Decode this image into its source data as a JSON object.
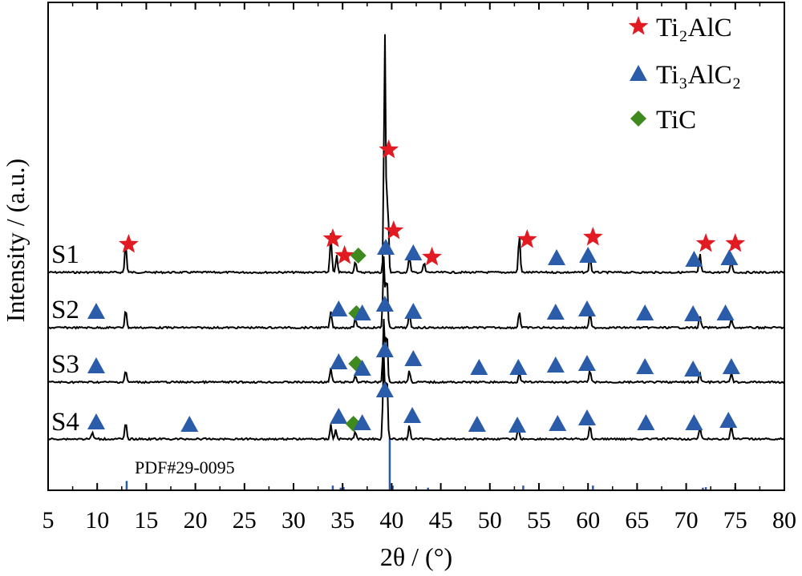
{
  "chart_data": {
    "type": "line",
    "xlabel": "2θ / (°)",
    "ylabel": "Intensity / (a.u.)",
    "xlim": [
      5,
      80
    ],
    "x_ticks": [
      "5",
      "10",
      "15",
      "20",
      "25",
      "30",
      "35",
      "40",
      "45",
      "50",
      "55",
      "60",
      "65",
      "70",
      "75",
      "80"
    ],
    "grid": false,
    "legend_position": "top-right",
    "legend": [
      {
        "marker": "star",
        "color": "#e21b23",
        "label": "Ti₂AlC"
      },
      {
        "marker": "triangle",
        "color": "#2a5caa",
        "label": "Ti₃AlC₂"
      },
      {
        "marker": "diamond",
        "color": "#3f8a1f",
        "label": "TiC"
      }
    ],
    "colors": {
      "ti2alc": "#e21b23",
      "ti3alc2": "#2a5caa",
      "tic": "#3f8a1f",
      "curve": "#000000",
      "reference": "#2a5caa"
    },
    "reference": {
      "label": "PDF#29-0095",
      "peaks": [
        {
          "x": 13.0,
          "rel": 0.18
        },
        {
          "x": 34.0,
          "rel": 0.09
        },
        {
          "x": 34.8,
          "rel": 0.05
        },
        {
          "x": 35.1,
          "rel": 0.06
        },
        {
          "x": 39.8,
          "rel": 1.0
        },
        {
          "x": 40.1,
          "rel": 0.09
        },
        {
          "x": 43.7,
          "rel": 0.05
        },
        {
          "x": 53.4,
          "rel": 0.09
        },
        {
          "x": 60.5,
          "rel": 0.09
        },
        {
          "x": 71.7,
          "rel": 0.05
        },
        {
          "x": 72.0,
          "rel": 0.06
        },
        {
          "x": 75.0,
          "rel": 0.06
        }
      ]
    },
    "series": [
      {
        "name": "S1",
        "peaks": [
          {
            "x": 12.9,
            "h": 0.12
          },
          {
            "x": 33.8,
            "h": 0.16
          },
          {
            "x": 34.4,
            "h": 0.07
          },
          {
            "x": 36.3,
            "h": 0.05
          },
          {
            "x": 39.3,
            "h": 1.0
          },
          {
            "x": 39.6,
            "h": 0.3
          },
          {
            "x": 41.8,
            "h": 0.07
          },
          {
            "x": 43.3,
            "h": 0.04
          },
          {
            "x": 53.0,
            "h": 0.16
          },
          {
            "x": 60.2,
            "h": 0.07
          },
          {
            "x": 71.4,
            "h": 0.08
          },
          {
            "x": 74.6,
            "h": 0.06
          }
        ],
        "markers": [
          {
            "type": "star",
            "x": 13.2
          },
          {
            "type": "star",
            "x": 34.0
          },
          {
            "type": "star",
            "x": 35.2
          },
          {
            "type": "diamond",
            "x": 36.6
          },
          {
            "type": "star",
            "x": 39.7
          },
          {
            "type": "triangle",
            "x": 39.4
          },
          {
            "type": "star",
            "x": 40.2
          },
          {
            "type": "triangle",
            "x": 42.2
          },
          {
            "type": "star",
            "x": 44.1
          },
          {
            "type": "star",
            "x": 53.8
          },
          {
            "type": "triangle",
            "x": 56.8
          },
          {
            "type": "triangle",
            "x": 60.0
          },
          {
            "type": "star",
            "x": 60.5
          },
          {
            "type": "triangle",
            "x": 70.8
          },
          {
            "type": "star",
            "x": 72.0
          },
          {
            "type": "triangle",
            "x": 74.4
          },
          {
            "type": "star",
            "x": 75.0
          }
        ]
      },
      {
        "name": "S2",
        "peaks": [
          {
            "x": 12.9,
            "h": 0.08
          },
          {
            "x": 33.8,
            "h": 0.07
          },
          {
            "x": 36.3,
            "h": 0.04
          },
          {
            "x": 39.2,
            "h": 0.3
          },
          {
            "x": 39.5,
            "h": 0.22
          },
          {
            "x": 41.8,
            "h": 0.06
          },
          {
            "x": 53.0,
            "h": 0.07
          },
          {
            "x": 60.2,
            "h": 0.06
          },
          {
            "x": 71.4,
            "h": 0.05
          },
          {
            "x": 74.6,
            "h": 0.04
          }
        ],
        "markers": [
          {
            "type": "triangle",
            "x": 9.9
          },
          {
            "type": "triangle",
            "x": 34.6
          },
          {
            "type": "diamond",
            "x": 36.4
          },
          {
            "type": "triangle",
            "x": 37.0
          },
          {
            "type": "triangle",
            "x": 39.3
          },
          {
            "type": "triangle",
            "x": 42.2
          },
          {
            "type": "triangle",
            "x": 56.7
          },
          {
            "type": "triangle",
            "x": 59.9
          },
          {
            "type": "triangle",
            "x": 65.8
          },
          {
            "type": "triangle",
            "x": 70.7
          },
          {
            "type": "triangle",
            "x": 74.0
          }
        ]
      },
      {
        "name": "S3",
        "peaks": [
          {
            "x": 12.9,
            "h": 0.05
          },
          {
            "x": 33.8,
            "h": 0.06
          },
          {
            "x": 36.3,
            "h": 0.03
          },
          {
            "x": 39.2,
            "h": 0.26
          },
          {
            "x": 39.5,
            "h": 0.22
          },
          {
            "x": 41.8,
            "h": 0.05
          },
          {
            "x": 53.0,
            "h": 0.04
          },
          {
            "x": 60.2,
            "h": 0.05
          },
          {
            "x": 71.4,
            "h": 0.04
          },
          {
            "x": 74.6,
            "h": 0.04
          }
        ],
        "markers": [
          {
            "type": "triangle",
            "x": 9.9
          },
          {
            "type": "triangle",
            "x": 34.6
          },
          {
            "type": "diamond",
            "x": 36.4
          },
          {
            "type": "triangle",
            "x": 37.0
          },
          {
            "type": "triangle",
            "x": 39.3
          },
          {
            "type": "triangle",
            "x": 42.2
          },
          {
            "type": "triangle",
            "x": 48.9
          },
          {
            "type": "triangle",
            "x": 52.9
          },
          {
            "type": "triangle",
            "x": 56.7
          },
          {
            "type": "triangle",
            "x": 59.9
          },
          {
            "type": "triangle",
            "x": 65.8
          },
          {
            "type": "triangle",
            "x": 70.7
          },
          {
            "type": "triangle",
            "x": 74.6
          }
        ]
      },
      {
        "name": "S4",
        "peaks": [
          {
            "x": 9.5,
            "h": 0.03
          },
          {
            "x": 12.9,
            "h": 0.07
          },
          {
            "x": 33.8,
            "h": 0.06
          },
          {
            "x": 34.3,
            "h": 0.04
          },
          {
            "x": 36.3,
            "h": 0.03
          },
          {
            "x": 39.2,
            "h": 0.36
          },
          {
            "x": 39.5,
            "h": 0.28
          },
          {
            "x": 41.8,
            "h": 0.06
          },
          {
            "x": 52.9,
            "h": 0.05
          },
          {
            "x": 60.2,
            "h": 0.06
          },
          {
            "x": 71.4,
            "h": 0.05
          },
          {
            "x": 74.6,
            "h": 0.06
          }
        ],
        "markers": [
          {
            "type": "triangle",
            "x": 9.9
          },
          {
            "type": "triangle",
            "x": 19.4
          },
          {
            "type": "triangle",
            "x": 34.6
          },
          {
            "type": "diamond",
            "x": 36.1
          },
          {
            "type": "triangle",
            "x": 37.0
          },
          {
            "type": "triangle",
            "x": 39.3
          },
          {
            "type": "triangle",
            "x": 42.1
          },
          {
            "type": "triangle",
            "x": 48.7
          },
          {
            "type": "triangle",
            "x": 52.8
          },
          {
            "type": "triangle",
            "x": 56.9
          },
          {
            "type": "triangle",
            "x": 59.9
          },
          {
            "type": "triangle",
            "x": 65.9
          },
          {
            "type": "triangle",
            "x": 70.8
          },
          {
            "type": "triangle",
            "x": 74.3
          }
        ]
      }
    ]
  }
}
